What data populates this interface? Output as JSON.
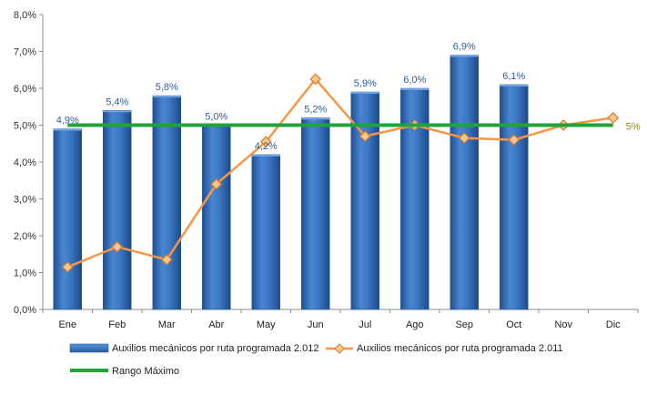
{
  "chart_data": {
    "type": "bar",
    "title": "",
    "xlabel": "",
    "ylabel": "",
    "categories": [
      "Ene",
      "Feb",
      "Mar",
      "Abr",
      "May",
      "Jun",
      "Jul",
      "Ago",
      "Sep",
      "Oct",
      "Nov",
      "Dic"
    ],
    "ylim": [
      0,
      8
    ],
    "ytick_step": 1,
    "ytick_labels": [
      "0,0%",
      "1,0%",
      "2,0%",
      "3,0%",
      "4,0%",
      "5,0%",
      "6,0%",
      "7,0%",
      "8,0%"
    ],
    "grid": false,
    "legend_position": "bottom",
    "series": [
      {
        "name": "Auxilios mecánicos por ruta programada 2.012",
        "type": "bar",
        "color": "#3C77C4",
        "values": [
          4.9,
          5.4,
          5.8,
          5.0,
          4.2,
          5.2,
          5.9,
          6.0,
          6.9,
          6.1,
          null,
          null
        ],
        "data_labels": [
          "4,9%",
          "5,4%",
          "5,8%",
          "5,0%",
          "4,2%",
          "5,2%",
          "5,9%",
          "6,0%",
          "6,9%",
          "6,1%",
          "",
          ""
        ]
      },
      {
        "name": "Auxilios mecánicos por ruta programada 2.011",
        "type": "line",
        "marker": "diamond",
        "color": "#F79646",
        "values": [
          1.15,
          1.7,
          1.35,
          3.4,
          4.55,
          6.25,
          4.7,
          5.0,
          4.65,
          4.6,
          5.0,
          5.2
        ]
      },
      {
        "name": "Rango Máximo",
        "type": "line",
        "color": "#1FA33A",
        "values": [
          5,
          5,
          5,
          5,
          5,
          5,
          5,
          5,
          5,
          5,
          5,
          5
        ],
        "end_label": "5%",
        "end_label_color": "#8A8A1E"
      }
    ]
  }
}
